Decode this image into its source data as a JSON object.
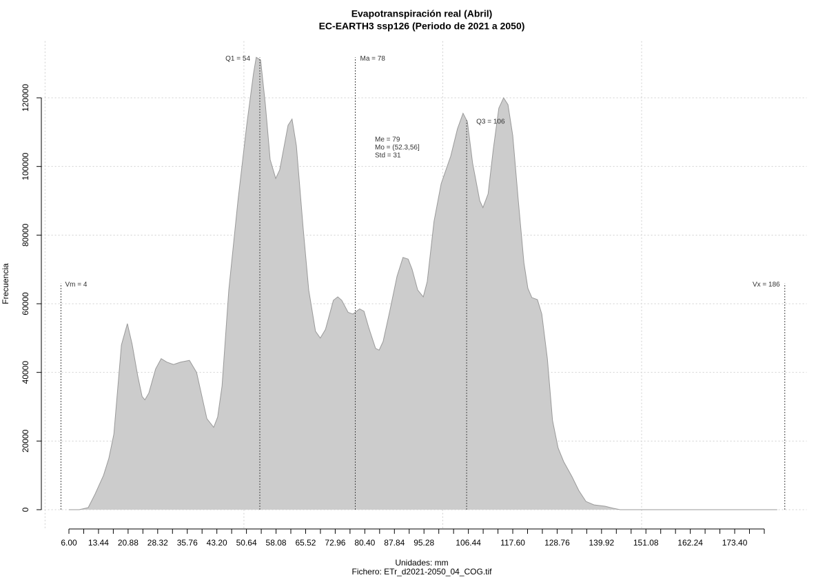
{
  "chart_data": {
    "type": "area",
    "title": "Evapotranspiración real (Abril)",
    "subtitle": "EC-EARTH3 ssp126 (Periodo de 2021 a 2050)",
    "xlabel": "Unidades: mm",
    "caption": "Fichero: ETr_d2021-2050_04_COG.tif",
    "ylabel": "Frecuencia",
    "color": "#cccccc",
    "line_color": "#999999",
    "x": [
      6,
      8.6,
      10.85,
      12.6,
      14.7,
      16.05,
      17.3,
      19.2,
      20.7,
      21.9,
      23.3,
      24.4,
      25.1,
      26.1,
      27.8,
      29.2,
      30.6,
      32.3,
      34.1,
      36.3,
      38.1,
      40.7,
      42.4,
      43.4,
      44.5,
      46.2,
      48.5,
      50.7,
      52.4,
      53.1,
      54.2,
      55.4,
      56.6,
      58,
      59,
      61.1,
      62.1,
      63.2,
      64.9,
      66.3,
      68,
      69.2,
      70.5,
      72.5,
      73.6,
      74.6,
      76.2,
      77.4,
      79.1,
      80.2,
      81.4,
      83.1,
      84,
      85,
      86.7,
      88.5,
      90,
      91.3,
      92.3,
      93.7,
      95.1,
      96.1,
      97.8,
      99.6,
      102,
      103.7,
      105.1,
      106.2,
      107.5,
      109.3,
      110.1,
      111.4,
      112.7,
      114.1,
      115.3,
      116.4,
      117.6,
      119,
      120.4,
      121.4,
      122.4,
      123.8,
      124.9,
      126.3,
      127.6,
      129,
      130.4,
      132.5,
      134.2,
      136,
      138,
      140.8,
      142.9,
      144.6,
      184.1
    ],
    "values": [
      0,
      0,
      600,
      4600,
      10000,
      15000,
      22000,
      48000,
      54200,
      48200,
      39000,
      33000,
      32000,
      34000,
      41000,
      44000,
      43000,
      42300,
      43000,
      43500,
      40000,
      26500,
      24000,
      27000,
      36000,
      64000,
      90000,
      112000,
      127000,
      131800,
      131000,
      118000,
      102000,
      96500,
      99000,
      112000,
      113800,
      106000,
      82000,
      64000,
      52000,
      50000,
      52500,
      61000,
      62000,
      61000,
      57500,
      57000,
      58500,
      57800,
      53000,
      47000,
      46500,
      49000,
      58000,
      68000,
      73500,
      73000,
      70000,
      64000,
      62000,
      66500,
      84000,
      95000,
      103000,
      111000,
      115500,
      113000,
      101000,
      90000,
      88000,
      92000,
      105000,
      117000,
      120000,
      118000,
      109000,
      90000,
      72000,
      64500,
      61800,
      61200,
      57000,
      44000,
      26000,
      18000,
      14000,
      9600,
      5600,
      2400,
      1400,
      1000,
      400,
      0,
      0
    ],
    "xlim": [
      -1,
      191.5
    ],
    "ylim": [
      -5600,
      136500
    ],
    "xticks": [
      {
        "value": 6,
        "label": "6.00"
      },
      {
        "value": 13.44,
        "label": "13.44"
      },
      {
        "value": 20.88,
        "label": "20.88"
      },
      {
        "value": 28.32,
        "label": "28.32"
      },
      {
        "value": 35.76,
        "label": "35.76"
      },
      {
        "value": 43.2,
        "label": "43.20"
      },
      {
        "value": 50.64,
        "label": "50.64"
      },
      {
        "value": 58.08,
        "label": "58.08"
      },
      {
        "value": 65.52,
        "label": "65.52"
      },
      {
        "value": 72.96,
        "label": "72.96"
      },
      {
        "value": 80.4,
        "label": "80.40"
      },
      {
        "value": 87.84,
        "label": "87.84"
      },
      {
        "value": 95.28,
        "label": "95.28"
      },
      {
        "value": 106.44,
        "label": "106.44"
      },
      {
        "value": 117.6,
        "label": "117.60"
      },
      {
        "value": 128.76,
        "label": "128.76"
      },
      {
        "value": 139.92,
        "label": "139.92"
      },
      {
        "value": 151.08,
        "label": "151.08"
      },
      {
        "value": 162.24,
        "label": "162.24"
      },
      {
        "value": 173.4,
        "label": "173.40"
      }
    ],
    "xminorticks": [
      9.72,
      17.16,
      24.6,
      32.04,
      39.48,
      46.92,
      54.36,
      61.8,
      69.24,
      76.68,
      84.12,
      91.56,
      99,
      102.72,
      110.16,
      113.88,
      121.32,
      125.04,
      132.48,
      136.2,
      143.64,
      147.36,
      154.8,
      158.52,
      165.96,
      169.68,
      177.12,
      180.84
    ],
    "yticks": [
      0,
      20000,
      40000,
      60000,
      80000,
      100000,
      120000
    ],
    "xgrid": [
      0,
      50,
      100,
      150
    ],
    "grid": true,
    "annotations": [
      {
        "label": "Vm = 4",
        "x": 4
      },
      {
        "label": "Q1 = 54",
        "x": 54
      },
      {
        "label": "Ma = 78",
        "x": 78
      },
      {
        "label": "Q3 = 106",
        "x": 106
      },
      {
        "label": "Vx = 186",
        "x": 186
      }
    ],
    "stats": [
      "Me = 79",
      "Mo = (52.3,56]",
      "Std = 31"
    ]
  }
}
